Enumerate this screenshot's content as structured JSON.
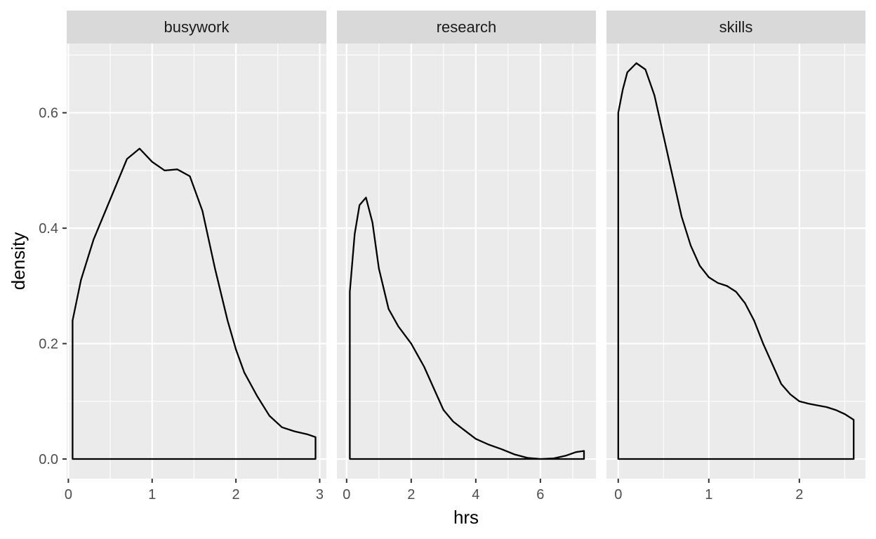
{
  "chart_data": {
    "type": "area",
    "chart_kind": "faceted density plot",
    "xlabel": "hrs",
    "ylabel": "density",
    "ylim": [
      -0.034,
      0.72
    ],
    "y_ticks": [
      0.0,
      0.2,
      0.4,
      0.6
    ],
    "y_tick_labels": [
      "0.0",
      "0.2",
      "0.4",
      "0.6"
    ],
    "grid": true,
    "legend": "none",
    "colors": {
      "panel_background": "#ebebeb",
      "strip_background": "#d9d9d9",
      "grid_major": "#ffffff",
      "line": "#000000"
    },
    "facets": [
      {
        "name": "busywork",
        "xlim": [
          -0.02,
          3.08
        ],
        "x_ticks": [
          0,
          1,
          2,
          3
        ],
        "x_tick_labels": [
          "0",
          "1",
          "2",
          "3"
        ],
        "x_minor": [
          0.5,
          1.5,
          2.5
        ],
        "x": [
          0.05,
          0.15,
          0.3,
          0.5,
          0.7,
          0.85,
          1.0,
          1.15,
          1.3,
          1.45,
          1.6,
          1.75,
          1.9,
          2.0,
          2.1,
          2.25,
          2.4,
          2.55,
          2.7,
          2.85,
          2.95
        ],
        "y": [
          0.24,
          0.31,
          0.38,
          0.45,
          0.52,
          0.538,
          0.515,
          0.5,
          0.502,
          0.49,
          0.43,
          0.33,
          0.24,
          0.19,
          0.15,
          0.11,
          0.075,
          0.055,
          0.048,
          0.043,
          0.038
        ]
      },
      {
        "name": "research",
        "xlim": [
          -0.3,
          7.72
        ],
        "x_ticks": [
          0,
          2,
          4,
          6
        ],
        "x_tick_labels": [
          "0",
          "2",
          "4",
          "6"
        ],
        "x_minor": [
          1,
          3,
          5,
          7
        ],
        "x": [
          0.1,
          0.25,
          0.4,
          0.6,
          0.8,
          1.0,
          1.3,
          1.6,
          2.0,
          2.4,
          2.8,
          3.0,
          3.3,
          3.6,
          4.0,
          4.4,
          4.8,
          5.2,
          5.6,
          6.0,
          6.4,
          6.8,
          7.1,
          7.35
        ],
        "y": [
          0.29,
          0.39,
          0.44,
          0.453,
          0.41,
          0.33,
          0.26,
          0.23,
          0.2,
          0.16,
          0.11,
          0.085,
          0.065,
          0.052,
          0.035,
          0.025,
          0.017,
          0.008,
          0.002,
          0.0,
          0.001,
          0.006,
          0.012,
          0.014
        ]
      },
      {
        "name": "skills",
        "xlim": [
          -0.13,
          2.73
        ],
        "x_ticks": [
          0,
          1,
          2
        ],
        "x_tick_labels": [
          "0",
          "1",
          "2"
        ],
        "x_minor": [
          0.5,
          1.5,
          2.5
        ],
        "x": [
          0.0,
          0.05,
          0.1,
          0.2,
          0.3,
          0.4,
          0.5,
          0.6,
          0.7,
          0.8,
          0.9,
          1.0,
          1.1,
          1.2,
          1.3,
          1.4,
          1.5,
          1.6,
          1.7,
          1.8,
          1.9,
          2.0,
          2.1,
          2.2,
          2.3,
          2.4,
          2.5,
          2.6
        ],
        "y": [
          0.6,
          0.64,
          0.67,
          0.686,
          0.675,
          0.63,
          0.56,
          0.49,
          0.42,
          0.37,
          0.335,
          0.315,
          0.305,
          0.3,
          0.29,
          0.27,
          0.24,
          0.2,
          0.165,
          0.13,
          0.112,
          0.1,
          0.096,
          0.093,
          0.09,
          0.085,
          0.078,
          0.068
        ]
      }
    ]
  }
}
